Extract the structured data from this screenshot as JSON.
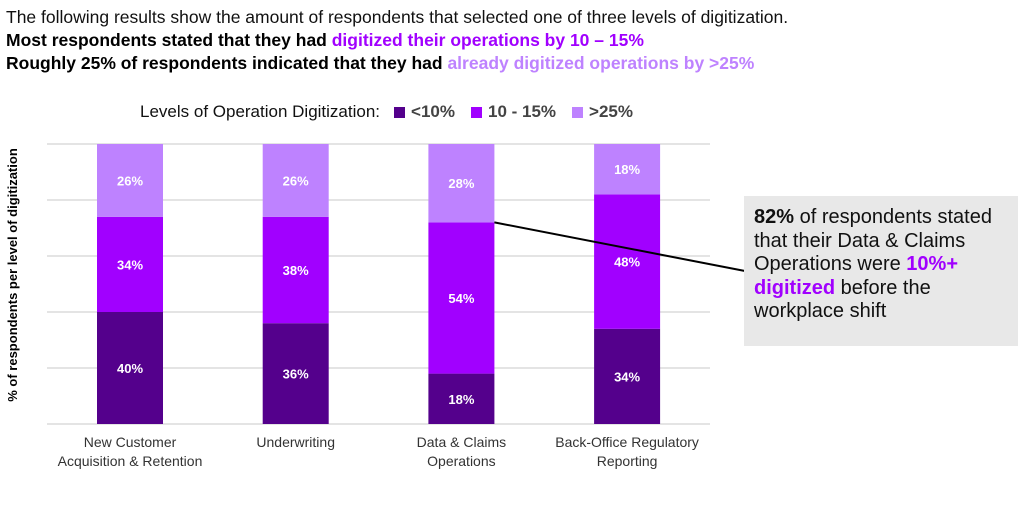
{
  "header": {
    "line1": "The following results show the amount of respondents that selected one of three levels of digitization.",
    "line2_prefix": "Most respondents stated that they had ",
    "line2_highlight": "digitized their operations by 10 – 15%",
    "line3_prefix": "Roughly 25% of respondents indicated that they had ",
    "line3_highlight": "already digitized operations by >25%"
  },
  "colors": {
    "low": "#54008c",
    "mid": "#a100ff",
    "high": "#be82ff",
    "grid": "#dcdcdc",
    "callout_bg": "#e8e8e8"
  },
  "callout": {
    "bold_lead": "82%",
    "text1": " of respondents stated that their Data & Claims Operations were ",
    "highlight": "10%+ digitized",
    "text2": " before the workplace shift"
  },
  "chart_data": {
    "type": "bar",
    "stacked": true,
    "title": "",
    "legend_title": "Levels of Operation Digitization:",
    "legend_position": "top",
    "xlabel": "",
    "ylabel": "% of respondents per level of digitization",
    "ylim": [
      0,
      100
    ],
    "grid": true,
    "categories": [
      "New Customer\nAcquisition & Retention",
      "Underwriting",
      "Data & Claims\nOperations",
      "Back-Office Regulatory\nReporting"
    ],
    "series": [
      {
        "name": "<10%",
        "color_key": "low",
        "values": [
          40,
          36,
          18,
          34
        ]
      },
      {
        "name": "10 - 15%",
        "color_key": "mid",
        "values": [
          34,
          38,
          54,
          48
        ]
      },
      {
        "name": ">25%",
        "color_key": "high",
        "values": [
          26,
          26,
          28,
          18
        ]
      }
    ],
    "annotation": "Line from top of Data & Claims Operations 10 - 15% segment to callout box"
  }
}
